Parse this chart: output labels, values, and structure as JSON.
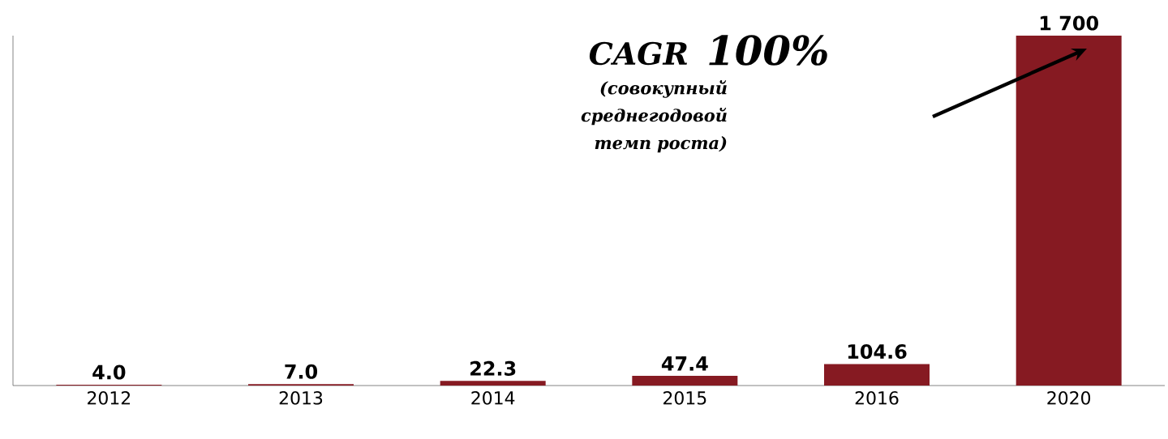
{
  "chart_data": {
    "type": "bar",
    "categories": [
      "2012",
      "2013",
      "2014",
      "2015",
      "2016",
      "2020"
    ],
    "values": [
      4.0,
      7.0,
      22.3,
      47.4,
      104.6,
      1700
    ],
    "value_labels": [
      "4.0",
      "7.0",
      "22.3",
      "47.4",
      "104.6",
      "1 700"
    ],
    "color": "#861a22",
    "ylim": [
      0,
      1700
    ],
    "tick_labels": "x",
    "annotations": [
      "CAGR",
      "100%",
      "(совокупный среднегодовой темп роста)"
    ]
  }
}
